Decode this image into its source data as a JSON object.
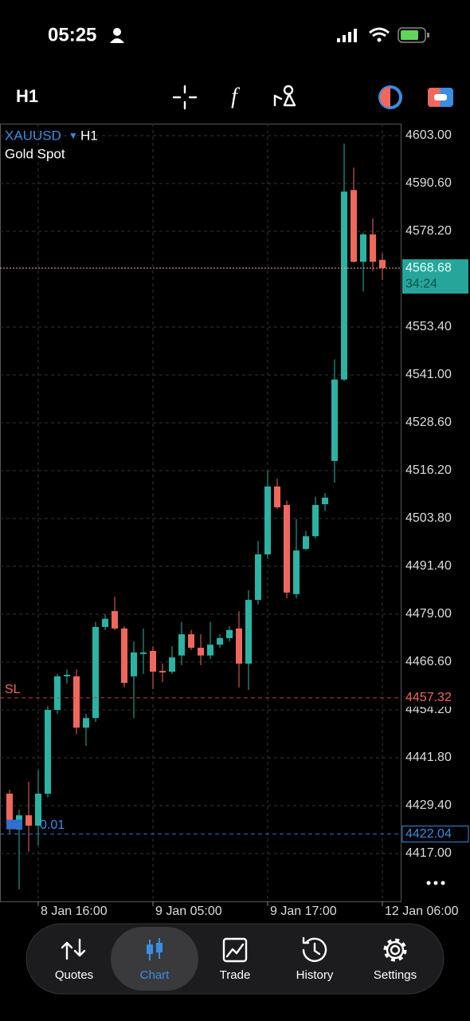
{
  "status_bar": {
    "time": "05:25"
  },
  "toolbar": {
    "timeframe": "H1"
  },
  "chart_data": {
    "type": "candlestick",
    "symbol": "XAUUSD",
    "timeframe": "H1",
    "subtitle": "Gold Spot",
    "categories": [
      null,
      null,
      null,
      "8 Jan 16:00",
      null,
      null,
      null,
      null,
      null,
      null,
      null,
      null,
      null,
      null,
      null,
      "9 Jan 05:00",
      null,
      null,
      null,
      null,
      null,
      null,
      null,
      null,
      null,
      null,
      null,
      "9 Jan 17:00",
      null,
      null,
      null,
      null,
      null,
      null,
      null,
      null,
      null,
      null,
      null,
      "12 Jan 06:00"
    ],
    "open": [
      4432.5,
      4423.2,
      4426.9,
      4424.2,
      4432.5,
      4454.2,
      4462.9,
      4462.9,
      4449.6,
      4452.1,
      4475.7,
      4479.8,
      4475.3,
      4462.9,
      4468.7,
      4469.5,
      4464.3,
      4464.1,
      4468.3,
      4473.8,
      4470.3,
      4468.3,
      4471.1,
      4472.8,
      4475.3,
      4466.2,
      4482.7,
      4494.5,
      4512.1,
      4507.3,
      4484.2,
      4495.9,
      4499.2,
      4507.5,
      4518.7,
      4539.8,
      4588.9,
      4570.3,
      4577.4,
      4570.8
    ],
    "high": [
      4433.5,
      4428.4,
      4435.6,
      4438.7,
      4455.2,
      4463.5,
      4464.7,
      4464.7,
      4453.2,
      4477.0,
      4479.0,
      4483.5,
      4475.9,
      4471.9,
      4475.3,
      4470.7,
      4466.2,
      4470.7,
      4477.0,
      4474.9,
      4473.8,
      4477.0,
      4473.8,
      4475.9,
      4479.8,
      4485.2,
      4498.0,
      4516.2,
      4514.1,
      4508.4,
      4503.6,
      4500.6,
      4509.4,
      4510.4,
      4545.0,
      4600.9,
      4594.7,
      4577.8,
      4581.5,
      4572.5
    ],
    "low": [
      4422.2,
      4407.7,
      4417.4,
      4419.1,
      4431.5,
      4453.2,
      4461.0,
      4447.9,
      4444.9,
      4451.1,
      4474.9,
      4474.9,
      4460.0,
      4452.1,
      4463.5,
      4459.6,
      4461.4,
      4463.5,
      4465.8,
      4469.7,
      4465.8,
      4467.4,
      4470.3,
      4471.9,
      4460.0,
      4459.4,
      4481.5,
      4493.5,
      4506.2,
      4483.1,
      4483.1,
      4495.5,
      4498.6,
      4505.8,
      4513.1,
      4539.4,
      4570.1,
      4562.6,
      4567.9,
      4565.6
    ],
    "close": [
      4424.2,
      4426.9,
      4424.2,
      4432.5,
      4454.2,
      4462.9,
      4463.3,
      4449.6,
      4452.1,
      4475.7,
      4477.8,
      4475.3,
      4461.2,
      4469.1,
      4469.1,
      4464.1,
      4463.9,
      4467.8,
      4473.8,
      4470.3,
      4468.3,
      4471.1,
      4472.8,
      4474.9,
      4466.2,
      4482.7,
      4494.5,
      4512.1,
      4506.7,
      4484.6,
      4495.5,
      4499.2,
      4507.3,
      4509.2,
      4539.8,
      4588.5,
      4570.3,
      4577.4,
      4570.3,
      4568.7
    ],
    "up_color": "#2bb3a3",
    "down_color": "#f0675c",
    "ylim": [
      4404.6,
      4606.1
    ],
    "yticks": [
      {
        "value": 4603,
        "label": "4603.00"
      },
      {
        "value": 4590.6,
        "label": "4590.60"
      },
      {
        "value": 4578.2,
        "label": "4578.20"
      },
      {
        "value": 4553.4,
        "label": "4553.40"
      },
      {
        "value": 4541,
        "label": "4541.00"
      },
      {
        "value": 4528.6,
        "label": "4528.60"
      },
      {
        "value": 4516.2,
        "label": "4516.20"
      },
      {
        "value": 4503.8,
        "label": "4503.80"
      },
      {
        "value": 4491.4,
        "label": "4491.40"
      },
      {
        "value": 4479,
        "label": "4479.00"
      },
      {
        "value": 4466.6,
        "label": "4466.60"
      },
      {
        "value": 4454.2,
        "label": "4454.20"
      },
      {
        "value": 4441.8,
        "label": "4441.80"
      },
      {
        "value": 4429.4,
        "label": "4429.40"
      },
      {
        "value": 4417,
        "label": "4417.00"
      }
    ],
    "grid": true,
    "current_price": {
      "value": 4568.68,
      "countdown": "34:24"
    },
    "stop_loss": {
      "label": "SL",
      "value": 4457.32
    },
    "order": {
      "volume": "0.01",
      "value": 4422.04
    }
  },
  "tab_bar": {
    "tabs": [
      "Quotes",
      "Chart",
      "Trade",
      "History",
      "Settings"
    ],
    "active": "Chart"
  }
}
